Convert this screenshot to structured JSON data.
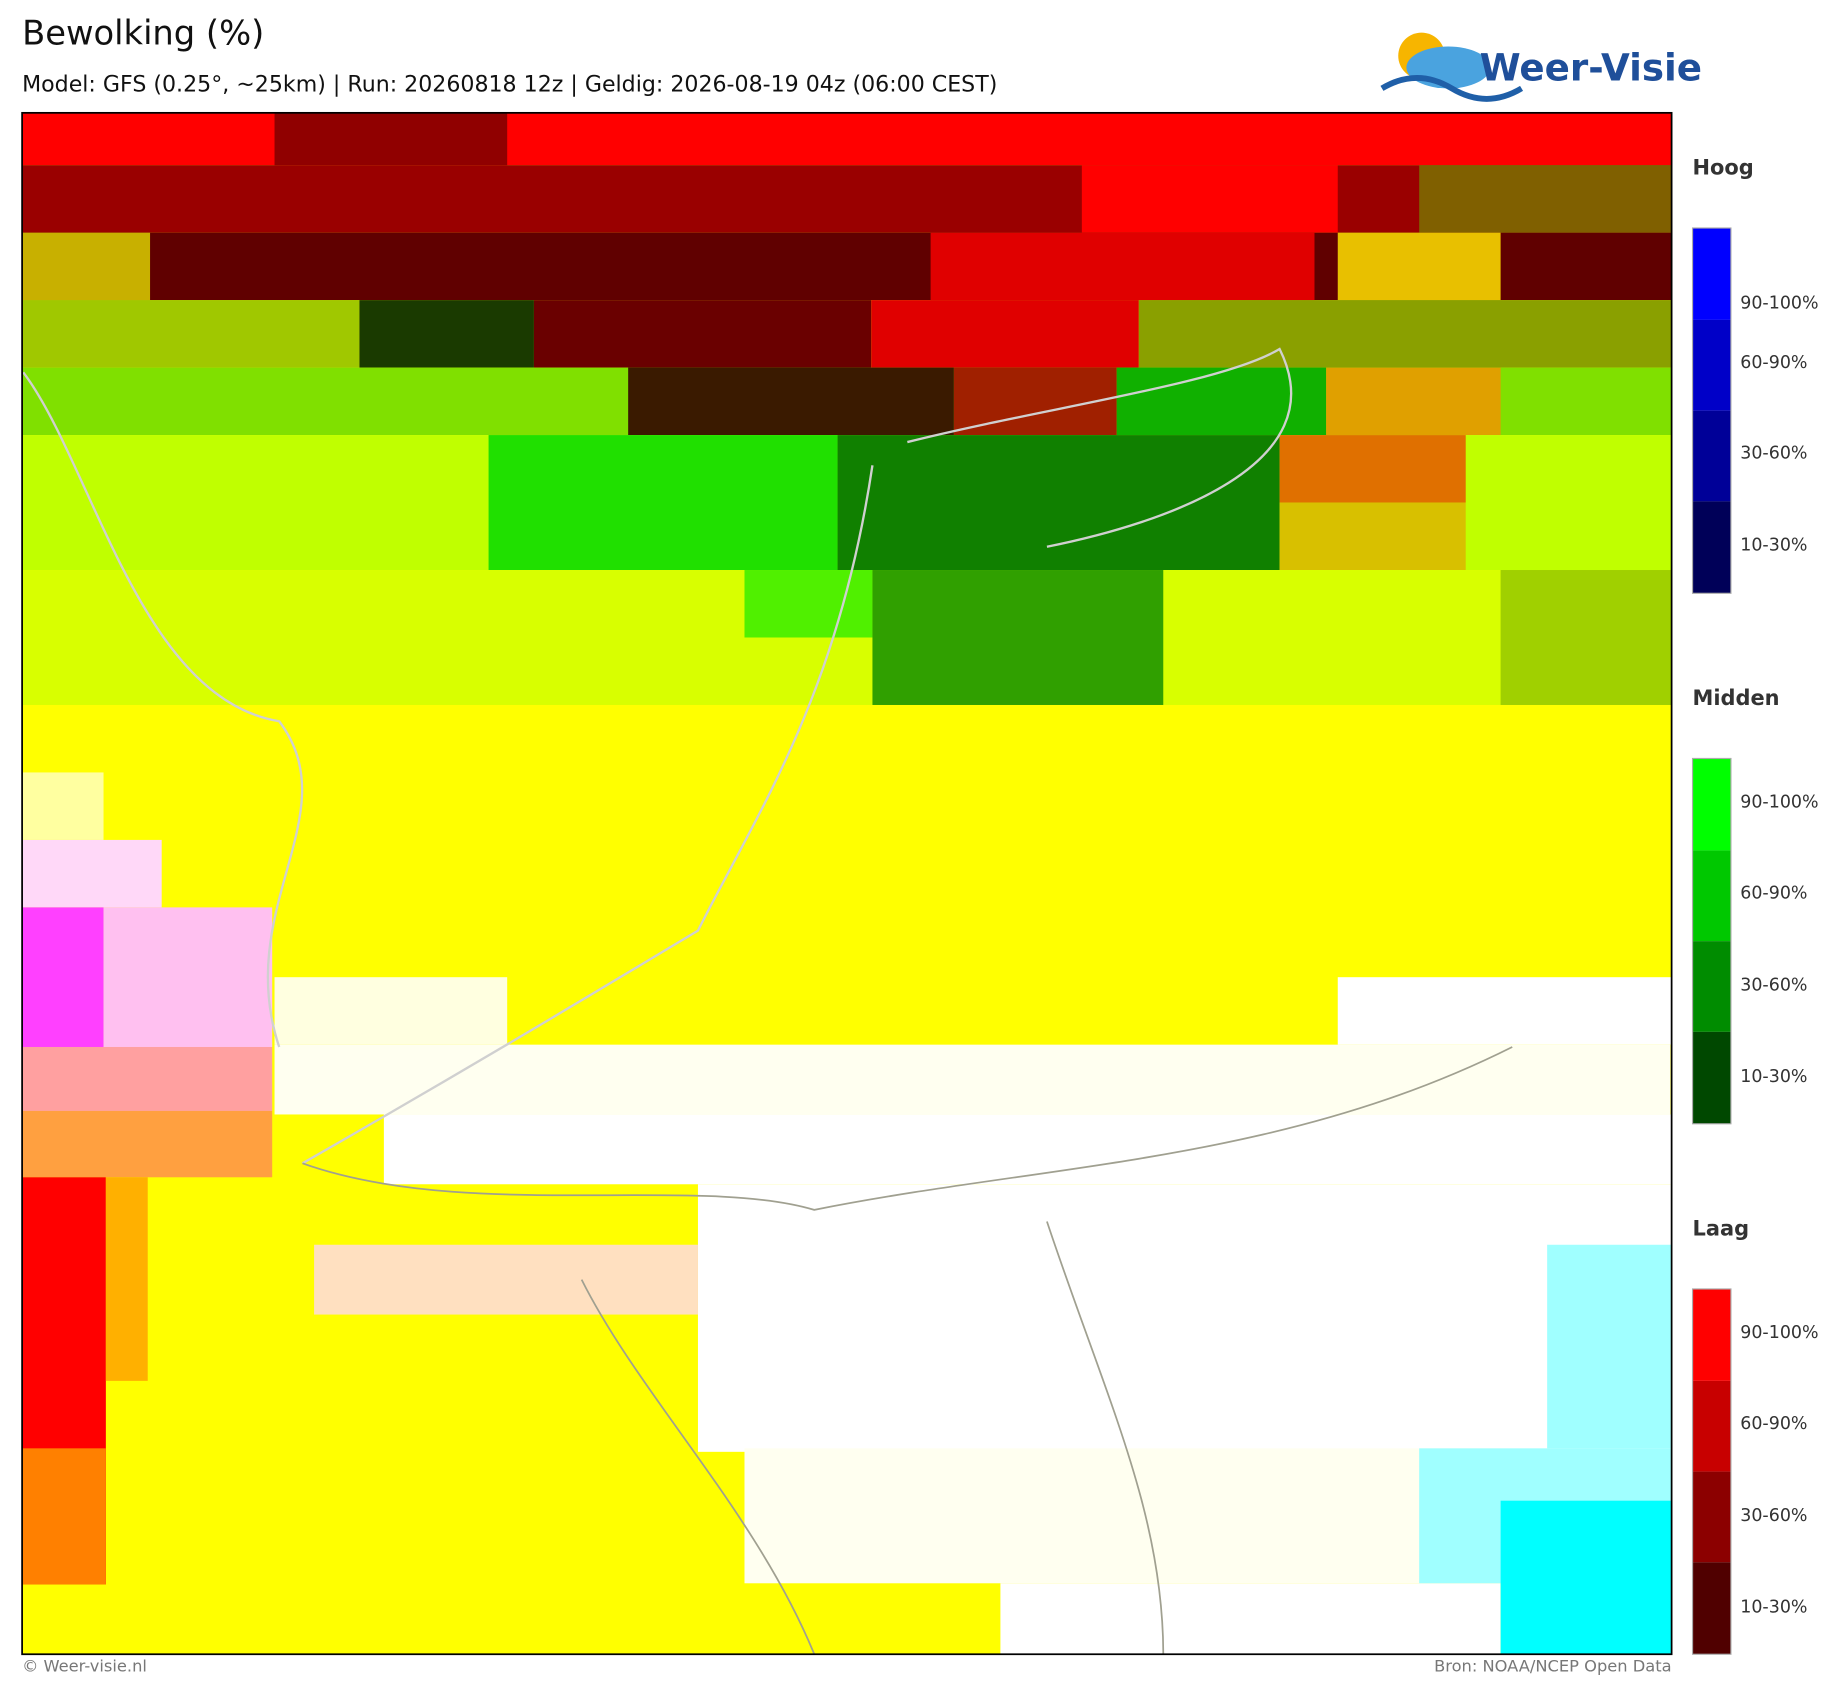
{
  "header": {
    "title": "Bewolking (%)",
    "subtitle": "Model: GFS (0.25°, ~25km)  |  Run: 20260818 12z  |  Geldig: 2026-08-19 04z (06:00 CEST)",
    "logo": "Weer-Visie"
  },
  "legend": [
    {
      "title": "Hoog",
      "labels": [
        "90-100%",
        "60-90%",
        "30-60%",
        "10-30%"
      ]
    },
    {
      "title": "Midden",
      "labels": [
        "90-100%",
        "60-90%",
        "30-60%",
        "10-30%"
      ]
    },
    {
      "title": "Laag",
      "labels": [
        "90-100%",
        "60-90%",
        "30-60%",
        "10-30%"
      ]
    }
  ],
  "footer": {
    "left": "© Weer-visie.nl",
    "right": "Bron: NOAA/NCEP Open Data"
  }
}
